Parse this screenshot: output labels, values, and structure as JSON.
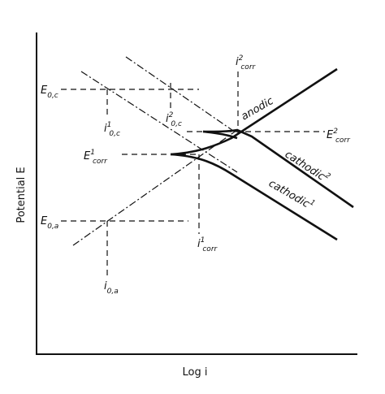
{
  "axes": {
    "y_label": "Potential E",
    "x_label": "Log i"
  },
  "labels": {
    "e0c": {
      "base": "E",
      "sub": "0,c"
    },
    "e0a": {
      "base": "E",
      "sub": "0,a"
    },
    "ecorr1": {
      "base": "E",
      "sup": "1",
      "sub": "corr"
    },
    "ecorr2": {
      "base": "E",
      "sup": "2",
      "sub": "corr"
    },
    "i0c1": {
      "base": "i",
      "sup": "1",
      "sub": "0,c"
    },
    "i0c2": {
      "base": "i",
      "sup": "2",
      "sub": "0,c"
    },
    "i0a": {
      "base": "i",
      "sub": "0,a"
    },
    "icorr1": {
      "base": "i",
      "sup": "1",
      "sub": "corr"
    },
    "icorr2": {
      "base": "i",
      "sup": "2",
      "sub": "corr"
    }
  },
  "curves": {
    "anodic": "anodic",
    "cathodic2": {
      "base": "cathodic",
      "sup": "2"
    },
    "cathodic1": {
      "base": "cathodic",
      "sup": "1"
    }
  }
}
